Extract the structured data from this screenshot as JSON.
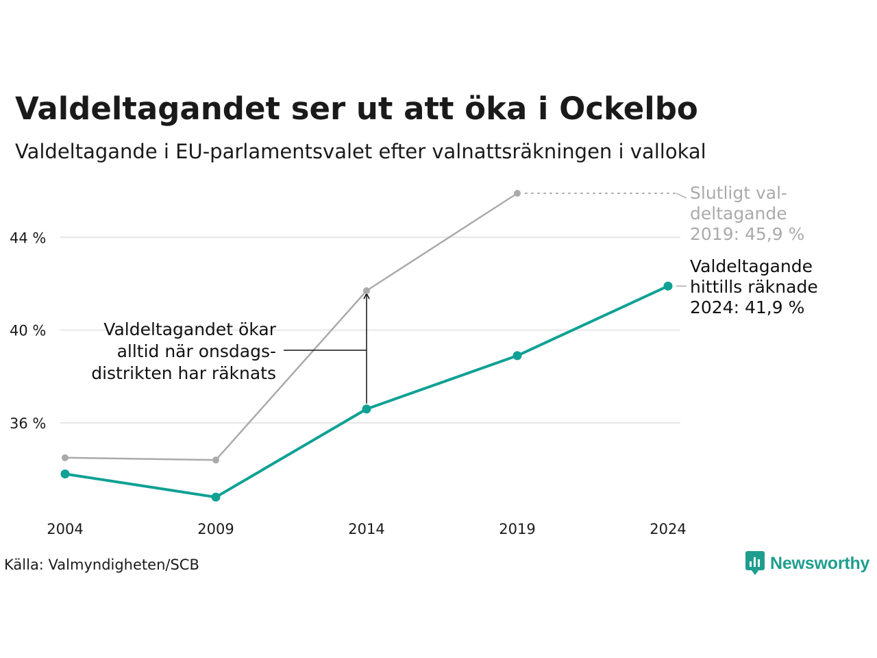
{
  "header": {
    "title": "Valdeltagandet ser ut att öka i Ockelbo",
    "subtitle": "Valdeltagande i EU-parlamentsvalet efter valnattsräkningen i vallokal"
  },
  "footer": {
    "source": "Källa: Valmyndigheten/SCB",
    "brand": "Newsworthy"
  },
  "colors": {
    "final": "#aaaaaa",
    "counted": "#0fa194",
    "grid": "#e6e6e6",
    "annotation": "#111111",
    "brand": "#1f9e8f"
  },
  "chart_data": {
    "type": "line",
    "x": [
      2004,
      2009,
      2014,
      2019,
      2024
    ],
    "x_tick_labels": [
      "2004",
      "2009",
      "2014",
      "2019",
      "2024"
    ],
    "ylim": [
      32.1,
      45.9
    ],
    "y_ticks": [
      36,
      40,
      44
    ],
    "y_tick_labels": [
      "36 %",
      "40 %",
      "44 %"
    ],
    "grid": true,
    "series": [
      {
        "key": "final",
        "values": [
          34.5,
          34.4,
          41.7,
          45.9,
          null
        ],
        "color": "#aaaaaa"
      },
      {
        "key": "counted",
        "values": [
          33.8,
          32.8,
          36.6,
          38.9,
          41.9
        ],
        "color": "#0fa194"
      }
    ],
    "annotations": {
      "final_label": [
        "Slutligt val-",
        "deltagande",
        "2019: 45,9 %"
      ],
      "counted_label": [
        "Valdeltagande",
        "hittills räknade",
        "2024: 41,9 %"
      ],
      "gap_note": [
        "Valdeltagandet ökar",
        "alltid när onsdags-",
        "distrikten har räknats"
      ]
    }
  }
}
